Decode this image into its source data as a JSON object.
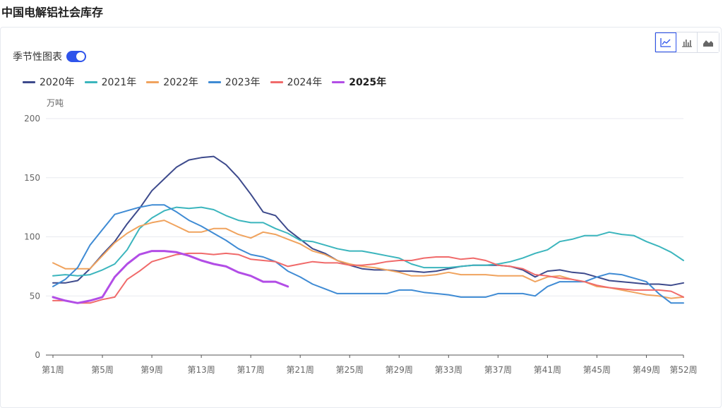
{
  "page": {
    "title": "中国电解铝社会库存"
  },
  "controls": {
    "seasonal_toggle_label": "季节性图表",
    "seasonal_toggle_on": true,
    "chart_type_buttons": [
      "line-chart-icon",
      "bar-chart-icon",
      "area-chart-icon"
    ],
    "active_chart_type": "line-chart-icon"
  },
  "chart_data": {
    "type": "line",
    "title": "中国电解铝社会库存",
    "ylabel": "万吨",
    "ylim": [
      0,
      200
    ],
    "yticks": [
      0,
      50,
      100,
      150,
      200
    ],
    "xlim": [
      1,
      52
    ],
    "xtick_values": [
      1,
      5,
      9,
      13,
      17,
      21,
      25,
      29,
      33,
      37,
      41,
      45,
      49,
      52
    ],
    "xtick_labels": [
      "第1周",
      "第5周",
      "第9周",
      "第13周",
      "第17周",
      "第21周",
      "第25周",
      "第29周",
      "第33周",
      "第37周",
      "第41周",
      "第45周",
      "第49周",
      "第52周"
    ],
    "grid": true,
    "legend_position": "top-left",
    "series": [
      {
        "name": "2020年",
        "color": "#3d4a8c",
        "bold": false,
        "x": [
          1,
          2,
          3,
          4,
          5,
          6,
          7,
          8,
          9,
          10,
          11,
          12,
          13,
          14,
          15,
          16,
          17,
          18,
          19,
          20,
          21,
          22,
          23,
          24,
          25,
          26,
          27,
          28,
          29,
          30,
          31,
          32,
          33,
          34,
          35,
          36,
          37,
          38,
          39,
          40,
          41,
          42,
          43,
          44,
          45,
          46,
          47,
          48,
          49,
          50,
          51,
          52
        ],
        "y": [
          61,
          61,
          63,
          73,
          85,
          96,
          111,
          124,
          139,
          149,
          159,
          165,
          167,
          168,
          161,
          150,
          136,
          121,
          118,
          106,
          98,
          90,
          86,
          80,
          76,
          73,
          72,
          72,
          71,
          71,
          70,
          71,
          73,
          75,
          76,
          76,
          76,
          75,
          72,
          66,
          71,
          72,
          70,
          69,
          66,
          63,
          62,
          61,
          60,
          60,
          59,
          61
        ]
      },
      {
        "name": "2021年",
        "color": "#3bb5bd",
        "bold": false,
        "x": [
          1,
          2,
          3,
          4,
          5,
          6,
          7,
          8,
          9,
          10,
          11,
          12,
          13,
          14,
          15,
          16,
          17,
          18,
          19,
          20,
          21,
          22,
          23,
          24,
          25,
          26,
          27,
          28,
          29,
          30,
          31,
          32,
          33,
          34,
          35,
          36,
          37,
          38,
          39,
          40,
          41,
          42,
          43,
          44,
          45,
          46,
          47,
          48,
          49,
          50,
          51,
          52
        ],
        "y": [
          67,
          68,
          67,
          68,
          72,
          77,
          89,
          107,
          116,
          122,
          125,
          124,
          125,
          123,
          118,
          114,
          112,
          112,
          107,
          103,
          97,
          96,
          93,
          90,
          88,
          88,
          86,
          84,
          82,
          77,
          74,
          74,
          74,
          75,
          76,
          76,
          77,
          79,
          82,
          86,
          89,
          96,
          98,
          101,
          101,
          104,
          102,
          101,
          96,
          92,
          87,
          80
        ]
      },
      {
        "name": "2022年",
        "color": "#f0a35e",
        "bold": false,
        "x": [
          1,
          2,
          3,
          4,
          5,
          6,
          7,
          8,
          9,
          10,
          11,
          12,
          13,
          14,
          15,
          16,
          17,
          18,
          19,
          20,
          21,
          22,
          23,
          24,
          25,
          26,
          27,
          28,
          29,
          30,
          31,
          32,
          33,
          34,
          35,
          36,
          37,
          38,
          39,
          40,
          41,
          42,
          43,
          44,
          45,
          46,
          47,
          48,
          49,
          50,
          51,
          52
        ],
        "y": [
          78,
          73,
          73,
          73,
          84,
          95,
          103,
          109,
          112,
          114,
          109,
          104,
          104,
          107,
          107,
          102,
          99,
          104,
          102,
          98,
          94,
          88,
          85,
          80,
          77,
          75,
          74,
          72,
          70,
          67,
          67,
          68,
          70,
          68,
          68,
          68,
          67,
          67,
          67,
          62,
          66,
          67,
          64,
          62,
          58,
          57,
          55,
          53,
          51,
          50,
          48,
          49
        ]
      },
      {
        "name": "2023年",
        "color": "#3f8bd4",
        "bold": false,
        "x": [
          1,
          2,
          3,
          4,
          5,
          6,
          7,
          8,
          9,
          10,
          11,
          12,
          13,
          14,
          15,
          16,
          17,
          18,
          19,
          20,
          21,
          22,
          23,
          24,
          25,
          26,
          27,
          28,
          29,
          30,
          31,
          32,
          33,
          34,
          35,
          36,
          37,
          38,
          39,
          40,
          41,
          42,
          43,
          44,
          45,
          46,
          47,
          48,
          49,
          50,
          51,
          52
        ],
        "y": [
          58,
          64,
          74,
          93,
          106,
          119,
          122,
          125,
          127,
          127,
          121,
          114,
          109,
          103,
          97,
          90,
          85,
          83,
          79,
          71,
          66,
          60,
          56,
          52,
          52,
          52,
          52,
          52,
          55,
          55,
          53,
          52,
          51,
          49,
          49,
          49,
          52,
          52,
          52,
          50,
          58,
          62,
          62,
          62,
          66,
          69,
          68,
          65,
          62,
          52,
          44,
          44
        ]
      },
      {
        "name": "2024年",
        "color": "#f06a6a",
        "bold": false,
        "x": [
          1,
          2,
          3,
          4,
          5,
          6,
          7,
          8,
          9,
          10,
          11,
          12,
          13,
          14,
          15,
          16,
          17,
          18,
          19,
          20,
          21,
          22,
          23,
          24,
          25,
          26,
          27,
          28,
          29,
          30,
          31,
          32,
          33,
          34,
          35,
          36,
          37,
          38,
          39,
          40,
          41,
          42,
          43,
          44,
          45,
          46,
          47,
          48,
          49,
          50,
          51,
          52
        ],
        "y": [
          46,
          46,
          44,
          44,
          47,
          49,
          64,
          71,
          79,
          82,
          85,
          86,
          86,
          85,
          86,
          85,
          81,
          80,
          79,
          75,
          77,
          79,
          78,
          78,
          76,
          76,
          77,
          79,
          80,
          80,
          82,
          83,
          83,
          81,
          82,
          80,
          76,
          75,
          73,
          68,
          67,
          65,
          64,
          62,
          59,
          57,
          56,
          55,
          55,
          55,
          54,
          49
        ]
      },
      {
        "name": "2025年",
        "color": "#b24de6",
        "bold": true,
        "x": [
          1,
          2,
          3,
          4,
          5,
          6,
          7,
          8,
          9,
          10,
          11,
          12,
          13,
          14,
          15,
          16,
          17,
          18,
          19,
          20
        ],
        "y": [
          49,
          46,
          44,
          46,
          49,
          66,
          77,
          85,
          88,
          88,
          87,
          84,
          80,
          77,
          75,
          70,
          67,
          62,
          62,
          58
        ]
      }
    ]
  }
}
